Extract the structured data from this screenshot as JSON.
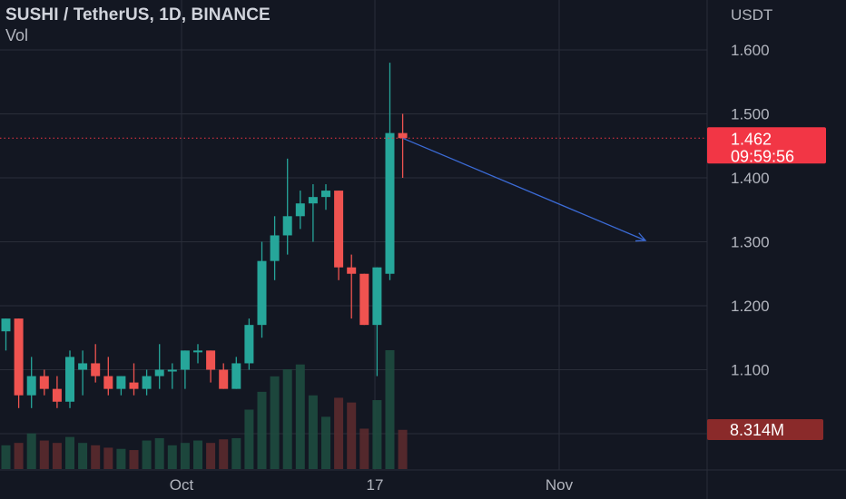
{
  "legend": {
    "symbol": "SUSHI / TetherUS, 1D, BINANCE",
    "indicator": "Vol"
  },
  "colors": {
    "background": "#131722",
    "grid": "#2a2e39",
    "up": "#26a69a",
    "down": "#ef5350",
    "vol_up": "#1e4b3f",
    "vol_down": "#5b2a2d",
    "arrow": "#3b6bd6",
    "last_price": "#f23645",
    "volume_badge": "#8a2a2a"
  },
  "chart_data": {
    "type": "candlestick",
    "timeframe": "1D",
    "axis_unit": "USDT",
    "y_ticks": [
      "1.600",
      "1.500",
      "1.400",
      "1.300",
      "1.200",
      "1.100"
    ],
    "ylim": [
      1.03,
      1.71
    ],
    "x_ticks": [
      "Oct",
      "17",
      "Nov"
    ],
    "grid": true,
    "last_price": "1.462",
    "countdown": "09:59:56",
    "volume_last": "8.314M",
    "candles": [
      {
        "o": 1.16,
        "h": 1.18,
        "l": 1.13,
        "c": 1.18,
        "v": 0.2
      },
      {
        "o": 1.18,
        "h": 1.18,
        "l": 1.04,
        "c": 1.06,
        "v": 0.22
      },
      {
        "o": 1.06,
        "h": 1.12,
        "l": 1.04,
        "c": 1.09,
        "v": 0.3
      },
      {
        "o": 1.09,
        "h": 1.1,
        "l": 1.06,
        "c": 1.07,
        "v": 0.24
      },
      {
        "o": 1.07,
        "h": 1.09,
        "l": 1.04,
        "c": 1.05,
        "v": 0.22
      },
      {
        "o": 1.05,
        "h": 1.13,
        "l": 1.04,
        "c": 1.12,
        "v": 0.27
      },
      {
        "o": 1.1,
        "h": 1.13,
        "l": 1.06,
        "c": 1.11,
        "v": 0.22
      },
      {
        "o": 1.11,
        "h": 1.14,
        "l": 1.08,
        "c": 1.09,
        "v": 0.2
      },
      {
        "o": 1.09,
        "h": 1.12,
        "l": 1.06,
        "c": 1.07,
        "v": 0.18
      },
      {
        "o": 1.07,
        "h": 1.09,
        "l": 1.06,
        "c": 1.09,
        "v": 0.17
      },
      {
        "o": 1.08,
        "h": 1.11,
        "l": 1.06,
        "c": 1.07,
        "v": 0.16
      },
      {
        "o": 1.07,
        "h": 1.1,
        "l": 1.06,
        "c": 1.09,
        "v": 0.24
      },
      {
        "o": 1.09,
        "h": 1.14,
        "l": 1.07,
        "c": 1.1,
        "v": 0.26
      },
      {
        "o": 1.1,
        "h": 1.11,
        "l": 1.07,
        "c": 1.1,
        "v": 0.2
      },
      {
        "o": 1.1,
        "h": 1.13,
        "l": 1.07,
        "c": 1.13,
        "v": 0.22
      },
      {
        "o": 1.13,
        "h": 1.14,
        "l": 1.11,
        "c": 1.13,
        "v": 0.24
      },
      {
        "o": 1.13,
        "h": 1.13,
        "l": 1.08,
        "c": 1.1,
        "v": 0.22
      },
      {
        "o": 1.1,
        "h": 1.11,
        "l": 1.07,
        "c": 1.07,
        "v": 0.25
      },
      {
        "o": 1.07,
        "h": 1.12,
        "l": 1.07,
        "c": 1.11,
        "v": 0.26
      },
      {
        "o": 1.11,
        "h": 1.18,
        "l": 1.1,
        "c": 1.17,
        "v": 0.5
      },
      {
        "o": 1.17,
        "h": 1.3,
        "l": 1.15,
        "c": 1.27,
        "v": 0.65
      },
      {
        "o": 1.27,
        "h": 1.34,
        "l": 1.24,
        "c": 1.31,
        "v": 0.78
      },
      {
        "o": 1.31,
        "h": 1.43,
        "l": 1.28,
        "c": 1.34,
        "v": 0.84
      },
      {
        "o": 1.34,
        "h": 1.38,
        "l": 1.32,
        "c": 1.36,
        "v": 0.88
      },
      {
        "o": 1.36,
        "h": 1.39,
        "l": 1.3,
        "c": 1.37,
        "v": 0.62
      },
      {
        "o": 1.37,
        "h": 1.39,
        "l": 1.35,
        "c": 1.38,
        "v": 0.44
      },
      {
        "o": 1.38,
        "h": 1.38,
        "l": 1.24,
        "c": 1.26,
        "v": 0.6
      },
      {
        "o": 1.26,
        "h": 1.28,
        "l": 1.18,
        "c": 1.25,
        "v": 0.56
      },
      {
        "o": 1.25,
        "h": 1.25,
        "l": 1.17,
        "c": 1.17,
        "v": 0.34
      },
      {
        "o": 1.17,
        "h": 1.26,
        "l": 1.09,
        "c": 1.26,
        "v": 0.58
      },
      {
        "o": 1.25,
        "h": 1.58,
        "l": 1.24,
        "c": 1.47,
        "v": 1.0
      },
      {
        "o": 1.47,
        "h": 1.5,
        "l": 1.4,
        "c": 1.462,
        "v": 0.33
      }
    ]
  }
}
